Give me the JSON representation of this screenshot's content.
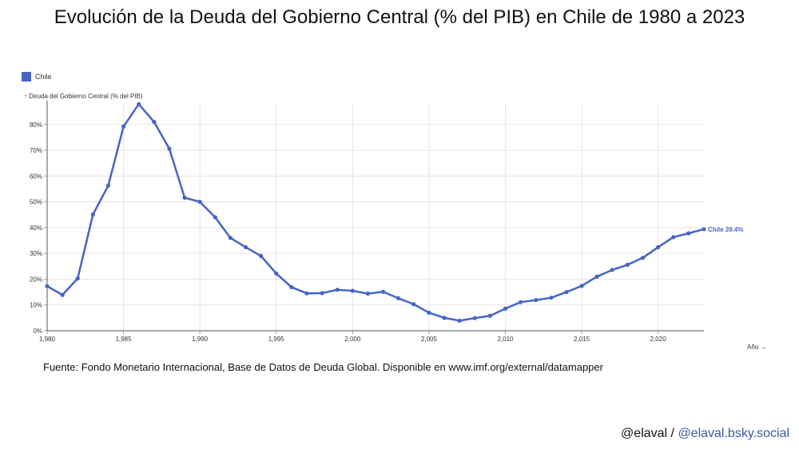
{
  "title": "Evolución de la Deuda del Gobierno Central (% del PIB) en Chile de 1980 a 2023",
  "source": "Fuente: Fondo Monetario Internacional, Base de Datos de Deuda Global. Disponible en www.imf.org/external/datamapper",
  "credit": {
    "handle": "@elaval",
    "separator": " / ",
    "bsky": "@elaval.bsky.social"
  },
  "colors": {
    "series": "#4664c8",
    "grid": "#e6e6e6",
    "axis": "#999999"
  },
  "chart_data": {
    "type": "line",
    "title": "Evolución de la Deuda del Gobierno Central (% del PIB) en Chile de 1980 a 2023",
    "xlabel": "Año →",
    "ylabel": "↑ Deuda del Gobierno Central (% del PIB)",
    "xlim": [
      1980,
      2023
    ],
    "ylim": [
      0,
      88
    ],
    "grid": true,
    "legend_position": "top-left",
    "x_ticks": [
      1980,
      1985,
      1990,
      1995,
      2000,
      2005,
      2010,
      2015,
      2020
    ],
    "x_tick_labels": [
      "1,980",
      "1,985",
      "1,990",
      "1,995",
      "2,000",
      "2,005",
      "2,010",
      "2,015",
      "2,020"
    ],
    "y_ticks": [
      0,
      10,
      20,
      30,
      40,
      50,
      60,
      70,
      80
    ],
    "y_tick_labels": [
      "0%",
      "10%",
      "20%",
      "30%",
      "40%",
      "50%",
      "60%",
      "70%",
      "80%"
    ],
    "end_label": "Chile 39.4%",
    "series": [
      {
        "name": "Chile",
        "x": [
          1980,
          1981,
          1982,
          1983,
          1984,
          1985,
          1986,
          1987,
          1988,
          1989,
          1990,
          1991,
          1992,
          1993,
          1994,
          1995,
          1996,
          1997,
          1998,
          1999,
          2000,
          2001,
          2002,
          2003,
          2004,
          2005,
          2006,
          2007,
          2008,
          2009,
          2010,
          2011,
          2012,
          2013,
          2014,
          2015,
          2016,
          2017,
          2018,
          2019,
          2020,
          2021,
          2022,
          2023
        ],
        "values": [
          17.3,
          13.9,
          20.3,
          45.1,
          56.3,
          79.2,
          87.9,
          81.0,
          70.6,
          51.6,
          50.0,
          44.0,
          36.0,
          32.4,
          29.0,
          22.2,
          16.9,
          14.5,
          14.6,
          15.9,
          15.5,
          14.4,
          15.1,
          12.6,
          10.3,
          7.0,
          5.0,
          3.9,
          4.9,
          5.8,
          8.6,
          11.1,
          11.9,
          12.8,
          15.0,
          17.4,
          21.0,
          23.6,
          25.6,
          28.3,
          32.4,
          36.3,
          37.8,
          39.4
        ]
      }
    ]
  }
}
